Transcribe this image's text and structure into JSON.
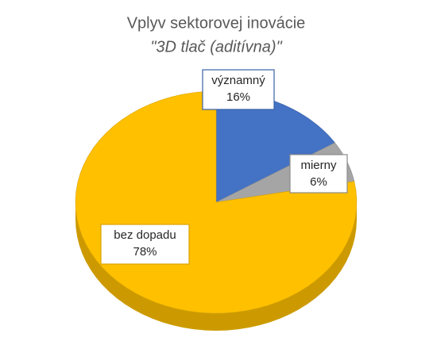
{
  "chart_data": {
    "type": "pie",
    "title": "Vplyv sektorovej inovácie",
    "subtitle": "\"3D tlač (aditívna)\"",
    "categories": [
      "významný",
      "mierny",
      "bez dopadu"
    ],
    "values": [
      16,
      6,
      78
    ],
    "value_labels": [
      "16%",
      "6%",
      "78%"
    ],
    "colors": [
      "#4472c4",
      "#a5a5a5",
      "#ffc000"
    ]
  }
}
